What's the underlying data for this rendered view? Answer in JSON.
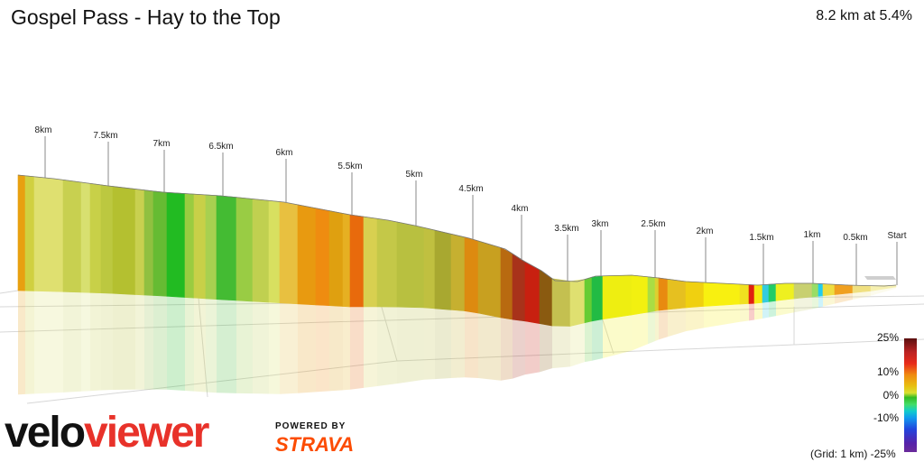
{
  "header": {
    "title": "Gospel Pass - Hay to the Top",
    "summary": "8.2 km at 5.4%"
  },
  "profile": {
    "markers": [
      "8km",
      "7.5km",
      "7km",
      "6.5km",
      "6km",
      "5.5km",
      "5km",
      "4.5km",
      "4km",
      "3.5km",
      "3km",
      "2.5km",
      "2km",
      "1.5km",
      "1km",
      "0.5km",
      "Start"
    ]
  },
  "legend": {
    "max_label": "25%",
    "p10_label": "10%",
    "zero_label": "0%",
    "n10_label": "-10%",
    "min_label": "(Grid: 1 km) -25%"
  },
  "branding": {
    "logo_velo": "velo",
    "logo_viewer": "viewer",
    "powered_by": "POWERED BY",
    "strava": "STRAVA"
  },
  "colors": {
    "logo_red": "#e8322a",
    "strava_orange": "#fc4c02"
  }
}
